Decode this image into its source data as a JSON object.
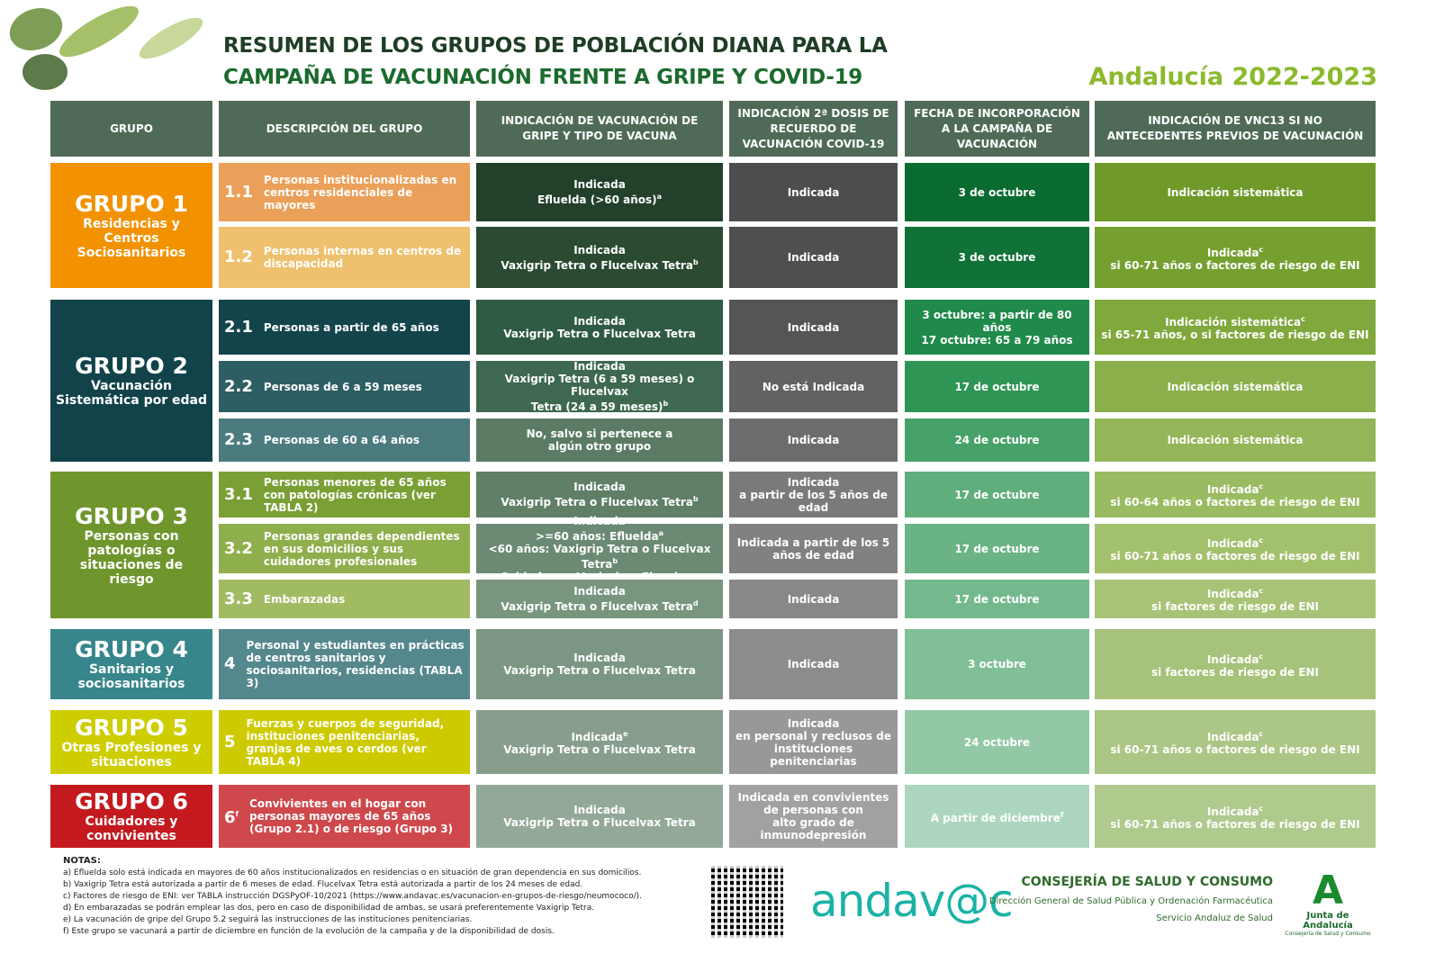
{
  "title": {
    "line1": "RESUMEN DE LOS GRUPOS DE POBLACIÓN DIANA PARA LA",
    "line2": "CAMPAÑA DE VACUNACIÓN FRENTE A GRIPE Y COVID-19"
  },
  "region": "Andalucía 2022-2023",
  "headers": [
    "GRUPO",
    "DESCRIPCIÓN DEL GRUPO",
    "INDICACIÓN DE VACUNACIÓN DE GRIPE Y TIPO DE VACUNA",
    "INDICACIÓN 2ª DOSIS DE RECUERDO DE VACUNACIÓN COVID-19",
    "FECHA DE INCORPORACIÓN A LA CAMPAÑA DE VACUNACIÓN",
    "INDICACIÓN DE VNC13 SI NO ANTECEDENTES PREVIOS DE VACUNACIÓN"
  ],
  "groups": [
    {
      "name": "GRUPO 1",
      "sub": "Residencias y Centros Sociosanitarios",
      "color": "#f39200",
      "rows": [
        {
          "num": "1.1",
          "desc": "Personas institucionalizadas en centros residenciales de mayores",
          "vac": [
            {
              "t": "Indicada"
            },
            {
              "t": "Efluelda (>60 años)",
              "s": "a"
            }
          ],
          "covid": [
            {
              "t": "Indicada"
            }
          ],
          "fecha": [
            {
              "t": "3 de octubre"
            }
          ],
          "vnc": [
            {
              "t": "Indicación sistemática"
            }
          ],
          "colors": [
            "#eba05a",
            "#23402a",
            "#4d4d4d",
            "#0a6b31",
            "#6f9a2a"
          ]
        },
        {
          "num": "1.2",
          "desc": "Personas internas en centros de discapacidad",
          "vac": [
            {
              "t": "Indicada"
            },
            {
              "t": "Vaxigrip Tetra o Flucelvax Tetra",
              "s": "b"
            }
          ],
          "covid": [
            {
              "t": "Indicada"
            }
          ],
          "fecha": [
            {
              "t": "3 de octubre"
            }
          ],
          "vnc": [
            {
              "t": "Indicada",
              "s": "c"
            },
            {
              "t": "si 60-71 años o factores de riesgo de ENI"
            }
          ],
          "colors": [
            "#efc06e",
            "#2a4a32",
            "#4f4f4f",
            "#107236",
            "#75a030"
          ]
        }
      ]
    },
    {
      "name": "GRUPO 2",
      "sub": "Vacunación Sistemática por edad",
      "color": "#12434a",
      "rows": [
        {
          "num": "2.1",
          "desc": "Personas a partir de 65 años",
          "vac": [
            {
              "t": "Indicada"
            },
            {
              "t": "Vaxigrip Tetra o Flucelvax Tetra"
            }
          ],
          "covid": [
            {
              "t": "Indicada"
            }
          ],
          "fecha": [
            {
              "t": "3 octubre: a partir de 80 años"
            },
            {
              "t": "17 octubre: 65 a 79 años"
            }
          ],
          "vnc": [
            {
              "t": "Indicación sistemática",
              "s": "c"
            },
            {
              "t": "si 65-71 años, o si factores de riesgo de ENI"
            }
          ],
          "colors": [
            "#13444b",
            "#2f5a43",
            "#555555",
            "#1f8a4a",
            "#80a83c"
          ]
        },
        {
          "num": "2.2",
          "desc": "Personas de 6 a 59 meses",
          "vac": [
            {
              "t": "Indicada"
            },
            {
              "t": "Vaxigrip Tetra  (6 a 59 meses) o Flucelvax"
            },
            {
              "t": "Tetra (24 a 59 meses)",
              "s": "b"
            }
          ],
          "covid": [
            {
              "t": "No está Indicada"
            }
          ],
          "fecha": [
            {
              "t": "17 de octubre"
            }
          ],
          "vnc": [
            {
              "t": "Indicación sistemática"
            }
          ],
          "colors": [
            "#2d5e63",
            "#3e6850",
            "#626262",
            "#2e9555",
            "#8bb04b"
          ]
        },
        {
          "num": "2.3",
          "desc": "Personas de 60 a 64 años",
          "vac": [
            {
              "t": "No, salvo si pertenece a"
            },
            {
              "t": "algún otro grupo"
            }
          ],
          "covid": [
            {
              "t": "Indicada"
            }
          ],
          "fecha": [
            {
              "t": "24 de octubre"
            }
          ],
          "vnc": [
            {
              "t": "Indicación sistemática"
            }
          ],
          "colors": [
            "#4c7b7f",
            "#5b7b65",
            "#6c6c6c",
            "#46a268",
            "#94b658"
          ]
        }
      ]
    },
    {
      "name": "GRUPO 3",
      "sub": "Personas con patologías o situaciones de riesgo",
      "color": "#6f962d",
      "rows": [
        {
          "num": "3.1",
          "desc": "Personas menores de 65 años con patologías crónicas  (ver TABLA 2)",
          "vac": [
            {
              "t": "Indicada"
            },
            {
              "t": "Vaxigrip Tetra o Flucelvax Tetra",
              "s": "b"
            }
          ],
          "covid": [
            {
              "t": "Indicada"
            },
            {
              "t": "a partir de los 5 años de"
            },
            {
              "t": "edad"
            }
          ],
          "fecha": [
            {
              "t": "17 de octubre"
            }
          ],
          "vnc": [
            {
              "t": "Indicada",
              "s": "c"
            },
            {
              "t": "si 60-64 años o factores de riesgo de ENI"
            }
          ],
          "colors": [
            "#7a9f34",
            "#5f7f67",
            "#7a7a7a",
            "#5fae7c",
            "#9bbb62"
          ]
        },
        {
          "num": "3.2",
          "desc": "Personas grandes dependientes en sus domicilios y sus cuidadores profesionales",
          "vac": [
            {
              "t": "Indicada"
            },
            {
              "t": ">=60 años: Efluelda",
              "s": "a"
            },
            {
              "t": "<60 años: Vaxigrip Tetra o Flucelvax Tetra",
              "s": "b"
            },
            {
              "t": "Cuidadores: Vaxigrip o Flucelvax"
            }
          ],
          "covid": [
            {
              "t": "Indicada a partir de los 5"
            },
            {
              "t": "años de edad"
            }
          ],
          "fecha": [
            {
              "t": "17 de octubre"
            }
          ],
          "vnc": [
            {
              "t": "Indicada",
              "s": "c"
            },
            {
              "t": "si 60-71 años o factores de riesgo de ENI"
            }
          ],
          "colors": [
            "#8fae4c",
            "#6b8a73",
            "#818181",
            "#69b384",
            "#a3c06c"
          ]
        },
        {
          "num": "3.3",
          "desc": "Embarazadas",
          "vac": [
            {
              "t": "Indicada"
            },
            {
              "t": "Vaxigrip Tetra o Flucelvax Tetra",
              "s": "d"
            }
          ],
          "covid": [
            {
              "t": "Indicada"
            }
          ],
          "fecha": [
            {
              "t": "17 de octubre"
            }
          ],
          "vnc": [
            {
              "t": "Indicada",
              "s": "c"
            },
            {
              "t": "si factores de riesgo de ENI"
            }
          ],
          "colors": [
            "#a1bb63",
            "#78957e",
            "#888888",
            "#74b98d",
            "#a8c376"
          ]
        }
      ]
    },
    {
      "name": "GRUPO 4",
      "sub": "Sanitarios y sociosanitarios",
      "color": "#37868c",
      "rows": [
        {
          "num": "4",
          "desc": "Personal y estudiantes en prácticas de centros sanitarios y sociosanitarios, residencias (TABLA 3)",
          "vac": [
            {
              "t": "Indicada"
            },
            {
              "t": "Vaxigrip Tetra o Flucelvax Tetra"
            }
          ],
          "covid": [
            {
              "t": "Indicada"
            }
          ],
          "fecha": [
            {
              "t": "3 octubre"
            }
          ],
          "vnc": [
            {
              "t": "Indicada",
              "s": "c"
            },
            {
              "t": "si factores de riesgo de ENI"
            }
          ],
          "colors": [
            "#54888d",
            "#7b9682",
            "#8c8c8c",
            "#80bf98",
            "#a7c27a"
          ]
        }
      ]
    },
    {
      "name": "GRUPO 5",
      "sub": "Otras Profesiones y situaciones",
      "color": "#cdcd00",
      "rows": [
        {
          "num": "5",
          "desc": "Fuerzas y cuerpos de seguridad, instituciones penitenciarias, granjas de aves o cerdos (ver TABLA 4)",
          "vac": [
            {
              "t": "Indicada",
              "s": "e"
            },
            {
              "t": "Vaxigrip Tetra o Flucelvax Tetra"
            }
          ],
          "covid": [
            {
              "t": "Indicada"
            },
            {
              "t": "en personal y reclusos de"
            },
            {
              "t": "instituciones penitenciarias"
            }
          ],
          "fecha": [
            {
              "t": "24 octubre"
            }
          ],
          "vnc": [
            {
              "t": "Indicada",
              "s": "c"
            },
            {
              "t": "si 60-71 años o factores de riesgo de ENI"
            }
          ],
          "colors": [
            "#cdcb00",
            "#889d8c",
            "#989898",
            "#93c8a6",
            "#acc685"
          ]
        }
      ]
    },
    {
      "name": "GRUPO 6",
      "sub": "Cuidadores y convivientes",
      "color": "#c41a1f",
      "rows": [
        {
          "num": "6",
          "numsup": "f",
          "desc": "Convivientes en el hogar con personas mayores de 65 años (Grupo 2.1) o de riesgo (Grupo 3)",
          "vac": [
            {
              "t": "Indicada"
            },
            {
              "t": "Vaxigrip Tetra o Flucelvax Tetra"
            }
          ],
          "covid": [
            {
              "t": "Indicada en convivientes"
            },
            {
              "t": "de personas con"
            },
            {
              "t": "alto grado de"
            },
            {
              "t": "inmunodepresión"
            }
          ],
          "fecha": [
            {
              "t": "A partir de diciembre",
              "s": "f"
            }
          ],
          "vnc": [
            {
              "t": "Indicada",
              "s": "c"
            },
            {
              "t": "si 60-71 años o factores de riesgo de ENI"
            }
          ],
          "colors": [
            "#cf484c",
            "#94a898",
            "#a1a1a1",
            "#acd6bd",
            "#b0c98d"
          ]
        }
      ]
    }
  ],
  "notes": {
    "title": "NOTAS:",
    "items": [
      "a) Efluelda solo está indicada en mayores de 60 años institucionalizados en residencias o en situación de gran dependencia en sus domicilios.",
      "b) Vaxigrip Tetra está autorizada a partir de 6 meses de edad. Flucelvax Tetra está autorizada a partir de los 24 meses de edad.",
      "c) Factores de riesgo de ENI: ver TABLA instrucción DGSPyOF-10/2021 (https://www.andavac.es/vacunacion-en-grupos-de-riesgo/neumococo/).",
      "d) En embarazadas se podrán emplear las dos, pero en caso de disponibilidad de ambas, se usará preferentemente Vaxigrip Tetra.",
      "e) La vacunación de gripe del Grupo 5.2 seguirá las instrucciones de las instituciones penitenciarias.",
      "f) Este grupo se vacunará a partir de diciembre en función de la evolución de la campaña y de la disponibilidad de dosis."
    ]
  },
  "footer": {
    "andavac": "andav@c",
    "consejeria": "CONSEJERÍA DE SALUD Y CONSUMO",
    "direccion": "Dirección General de Salud Pública y Ordenación Farmacéutica",
    "servicio": "Servicio Andaluz de Salud",
    "junta": "Junta de Andalucía",
    "junta_sub": "Consejería de Salud y Consumo"
  }
}
